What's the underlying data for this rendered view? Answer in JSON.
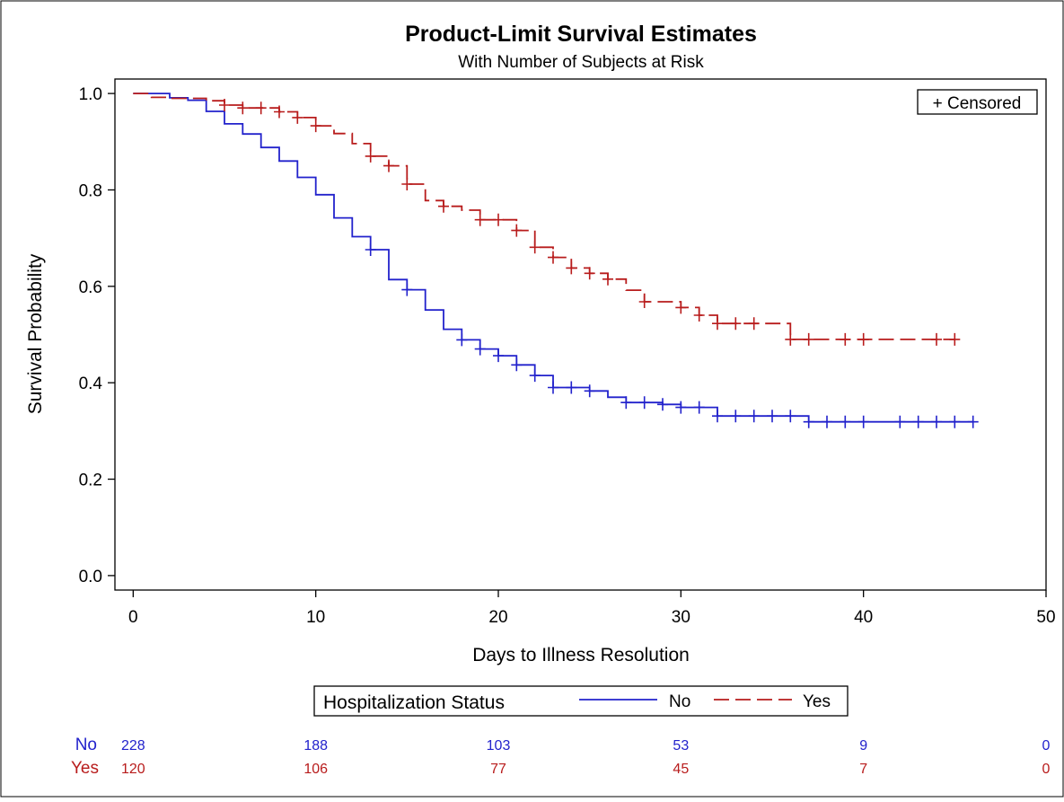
{
  "chart_data": {
    "type": "line",
    "subtype": "kaplan-meier step",
    "title": "Product-Limit Survival Estimates",
    "subtitle": "With Number of Subjects at Risk",
    "xlabel": "Days to Illness Resolution",
    "ylabel": "Survival Probability",
    "xlim": [
      -1,
      50
    ],
    "ylim": [
      -0.03,
      1.03
    ],
    "xticks": [
      0,
      10,
      20,
      30,
      40,
      50
    ],
    "yticks": [
      0.0,
      0.2,
      0.4,
      0.6,
      0.8,
      1.0
    ],
    "xtick_labels": [
      "0",
      "10",
      "20",
      "30",
      "40",
      "50"
    ],
    "ytick_labels": [
      "0.0",
      "0.2",
      "0.4",
      "0.6",
      "0.8",
      "1.0"
    ],
    "grid": false,
    "censored_legend": "+ Censored",
    "censored_legend_position": "top-right",
    "legend": {
      "title": "Hospitalization Status",
      "position": "bottom-center",
      "entries": [
        "No",
        "Yes"
      ]
    },
    "series": [
      {
        "name": "No",
        "color": "#2222cc",
        "dash": "solid",
        "steps": [
          [
            0,
            1.0
          ],
          [
            2,
            0.991
          ],
          [
            3,
            0.986
          ],
          [
            4,
            0.963
          ],
          [
            5,
            0.937
          ],
          [
            6,
            0.916
          ],
          [
            7,
            0.888
          ],
          [
            8,
            0.86
          ],
          [
            9,
            0.826
          ],
          [
            10,
            0.79
          ],
          [
            11,
            0.742
          ],
          [
            12,
            0.703
          ],
          [
            13,
            0.676
          ],
          [
            14,
            0.614
          ],
          [
            15,
            0.593
          ],
          [
            16,
            0.551
          ],
          [
            17,
            0.511
          ],
          [
            18,
            0.489
          ],
          [
            19,
            0.47
          ],
          [
            20,
            0.456
          ],
          [
            21,
            0.437
          ],
          [
            22,
            0.415
          ],
          [
            23,
            0.39
          ],
          [
            25,
            0.383
          ],
          [
            26,
            0.37
          ],
          [
            27,
            0.359
          ],
          [
            29,
            0.355
          ],
          [
            30,
            0.349
          ],
          [
            32,
            0.331
          ],
          [
            37,
            0.319
          ],
          [
            46,
            0.319
          ]
        ],
        "censored": [
          [
            13,
            0.676
          ],
          [
            15,
            0.593
          ],
          [
            18,
            0.489
          ],
          [
            19,
            0.47
          ],
          [
            20,
            0.456
          ],
          [
            21,
            0.437
          ],
          [
            22,
            0.415
          ],
          [
            23,
            0.39
          ],
          [
            24,
            0.39
          ],
          [
            25,
            0.383
          ],
          [
            27,
            0.359
          ],
          [
            28,
            0.359
          ],
          [
            29,
            0.355
          ],
          [
            30,
            0.349
          ],
          [
            31,
            0.349
          ],
          [
            32,
            0.331
          ],
          [
            33,
            0.331
          ],
          [
            34,
            0.331
          ],
          [
            35,
            0.331
          ],
          [
            36,
            0.331
          ],
          [
            37,
            0.319
          ],
          [
            38,
            0.319
          ],
          [
            39,
            0.319
          ],
          [
            40,
            0.319
          ],
          [
            42,
            0.319
          ],
          [
            43,
            0.319
          ],
          [
            44,
            0.319
          ],
          [
            45,
            0.319
          ],
          [
            46,
            0.319
          ]
        ],
        "at_risk": [
          228,
          188,
          103,
          53,
          9,
          0
        ]
      },
      {
        "name": "Yes",
        "color": "#b81c1c",
        "dash": "long-dash",
        "steps": [
          [
            0,
            1.0
          ],
          [
            1,
            0.992
          ],
          [
            2,
            0.99
          ],
          [
            4,
            0.985
          ],
          [
            5,
            0.976
          ],
          [
            6,
            0.97
          ],
          [
            8,
            0.962
          ],
          [
            9,
            0.95
          ],
          [
            10,
            0.933
          ],
          [
            11,
            0.917
          ],
          [
            12,
            0.896
          ],
          [
            13,
            0.87
          ],
          [
            14,
            0.85
          ],
          [
            15,
            0.812
          ],
          [
            16,
            0.778
          ],
          [
            17,
            0.766
          ],
          [
            18,
            0.758
          ],
          [
            19,
            0.738
          ],
          [
            21,
            0.716
          ],
          [
            22,
            0.681
          ],
          [
            23,
            0.66
          ],
          [
            24,
            0.638
          ],
          [
            25,
            0.627
          ],
          [
            26,
            0.615
          ],
          [
            27,
            0.592
          ],
          [
            28,
            0.568
          ],
          [
            30,
            0.556
          ],
          [
            31,
            0.54
          ],
          [
            32,
            0.523
          ],
          [
            36,
            0.49
          ],
          [
            45,
            0.49
          ]
        ],
        "censored": [
          [
            5,
            0.976
          ],
          [
            6,
            0.97
          ],
          [
            7,
            0.97
          ],
          [
            8,
            0.962
          ],
          [
            9,
            0.95
          ],
          [
            10,
            0.933
          ],
          [
            13,
            0.87
          ],
          [
            14,
            0.85
          ],
          [
            15,
            0.812
          ],
          [
            17,
            0.766
          ],
          [
            19,
            0.738
          ],
          [
            20,
            0.738
          ],
          [
            21,
            0.716
          ],
          [
            22,
            0.681
          ],
          [
            23,
            0.66
          ],
          [
            24,
            0.638
          ],
          [
            25,
            0.627
          ],
          [
            26,
            0.615
          ],
          [
            28,
            0.568
          ],
          [
            30,
            0.556
          ],
          [
            31,
            0.54
          ],
          [
            32,
            0.523
          ],
          [
            33,
            0.523
          ],
          [
            34,
            0.523
          ],
          [
            36,
            0.49
          ],
          [
            37,
            0.49
          ],
          [
            39,
            0.49
          ],
          [
            40,
            0.49
          ],
          [
            44,
            0.49
          ],
          [
            45,
            0.49
          ]
        ],
        "at_risk": [
          120,
          106,
          77,
          45,
          7,
          0
        ]
      }
    ],
    "at_risk_times": [
      0,
      10,
      20,
      30,
      40,
      50
    ]
  }
}
